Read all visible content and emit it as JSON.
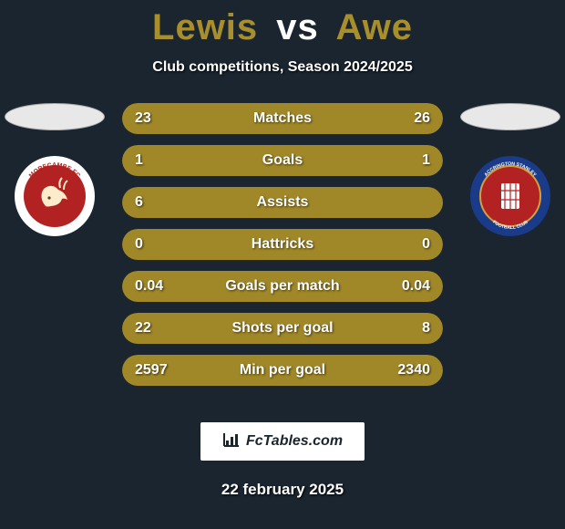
{
  "header": {
    "left_name": "Lewis",
    "vs_label": "vs",
    "right_name": "Awe",
    "subtitle": "Club competitions, Season 2024/2025"
  },
  "player_left": {
    "crest_outer_color": "#ffffff",
    "crest_inner_color": "#b22222",
    "crest_text_top": "MORECAMBE FC",
    "crest_text_color": "#b22222"
  },
  "player_right": {
    "crest_outer_color": "#1a3a8a",
    "crest_inner_color": "#b22222",
    "crest_text_top": "ACCRINGTON STANLEY",
    "crest_sub_text": "FOOTBALL CLUB",
    "crest_text_color": "#ffffff"
  },
  "stats": [
    {
      "label": "Matches",
      "left_val": "23",
      "right_val": "26",
      "left_pct": 46,
      "right_pct": 54
    },
    {
      "label": "Goals",
      "left_val": "1",
      "right_val": "1",
      "left_pct": 50,
      "right_pct": 50
    },
    {
      "label": "Assists",
      "left_val": "6",
      "right_val": "",
      "left_pct": 100,
      "right_pct": 0
    },
    {
      "label": "Hattricks",
      "left_val": "0",
      "right_val": "0",
      "left_pct": 50,
      "right_pct": 50
    },
    {
      "label": "Goals per match",
      "left_val": "0.04",
      "right_val": "0.04",
      "left_pct": 50,
      "right_pct": 50
    },
    {
      "label": "Shots per goal",
      "left_val": "22",
      "right_val": "8",
      "left_pct": 73,
      "right_pct": 27
    },
    {
      "label": "Min per goal",
      "left_val": "2597",
      "right_val": "2340",
      "left_pct": 53,
      "right_pct": 47
    }
  ],
  "style": {
    "bar_fill_color": "#a08728",
    "bar_track_color": "#3a3f2f",
    "title_accent_color": "#a88f2c",
    "background_color": "#1a2530",
    "ellipse_color": "#e8e8e8",
    "label_fontsize": 16,
    "value_fontsize": 16,
    "title_fontsize": 40
  },
  "footer": {
    "brand": "FcTables.com",
    "date": "22 february 2025"
  }
}
